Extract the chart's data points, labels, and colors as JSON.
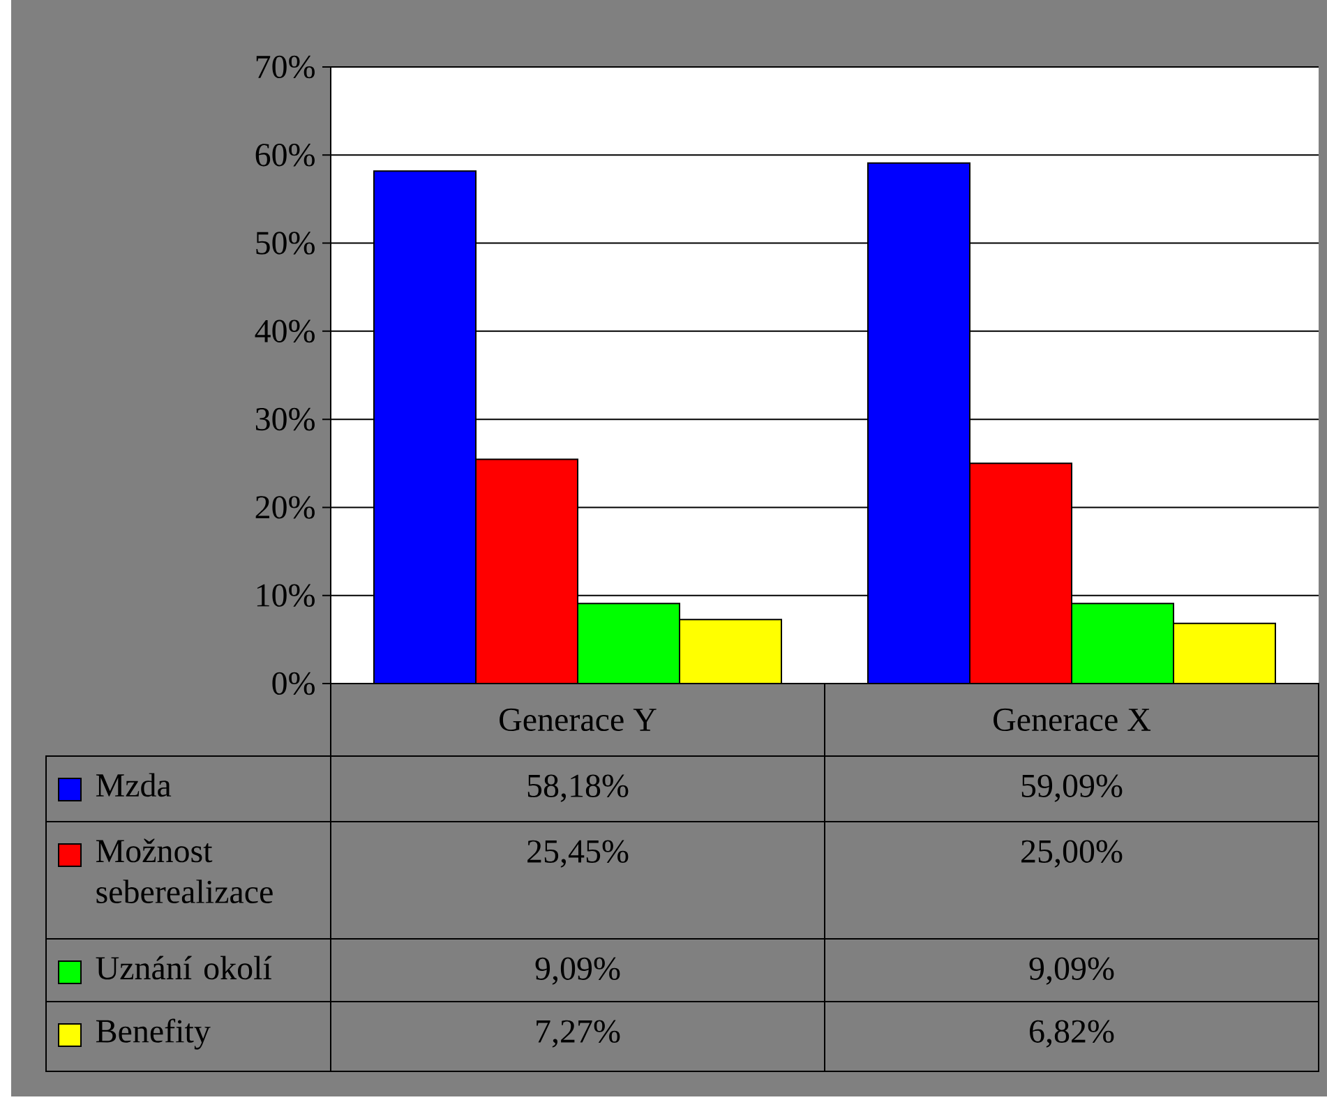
{
  "chart_data": {
    "type": "bar",
    "categories": [
      "Generace Y",
      "Generace X"
    ],
    "series": [
      {
        "name": "Mzda",
        "color": "#0000ff",
        "values": [
          58.18,
          59.09
        ],
        "value_labels": [
          "58,18%",
          "59,09%"
        ]
      },
      {
        "name": "Možnost seberealizace",
        "color": "#ff0000",
        "values": [
          25.45,
          25.0
        ],
        "value_labels": [
          "25,45%",
          "25,00%"
        ]
      },
      {
        "name": "Uznání okolí",
        "color": "#00ff00",
        "values": [
          9.09,
          9.09
        ],
        "value_labels": [
          "9,09%",
          "9,09%"
        ]
      },
      {
        "name": "Benefity",
        "color": "#ffff00",
        "values": [
          7.27,
          6.82
        ],
        "value_labels": [
          "7,27%",
          "6,82%"
        ]
      }
    ],
    "ylim": [
      0,
      70
    ],
    "yticks": [
      {
        "value": 0,
        "label": "0%"
      },
      {
        "value": 10,
        "label": "10%"
      },
      {
        "value": 20,
        "label": "20%"
      },
      {
        "value": 30,
        "label": "30%"
      },
      {
        "value": 40,
        "label": "40%"
      },
      {
        "value": 50,
        "label": "50%"
      },
      {
        "value": 60,
        "label": "60%"
      },
      {
        "value": 70,
        "label": "70%"
      }
    ],
    "grid": "y",
    "legend": "bottom"
  }
}
